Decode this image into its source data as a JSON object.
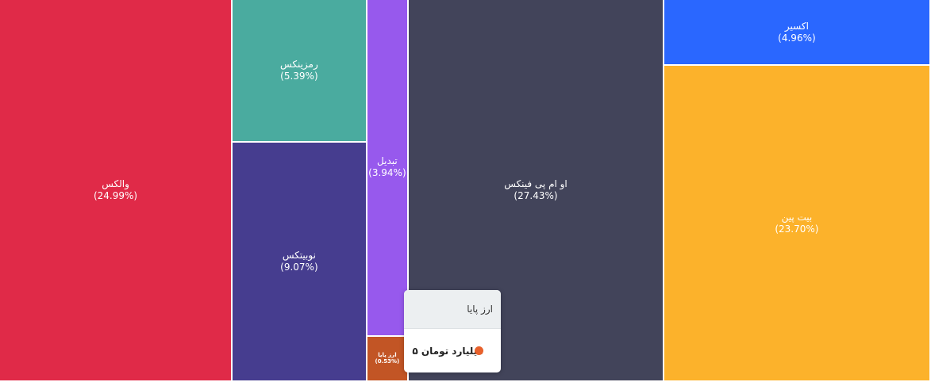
{
  "chart_data": {
    "type": "treemap",
    "items": [
      {
        "name": "والکس",
        "percent": 24.99,
        "label": "(24.99%)",
        "color": "#e02a48"
      },
      {
        "name": "رمزینکس",
        "percent": 5.39,
        "label": "(5.39%)",
        "color": "#4aab9f"
      },
      {
        "name": "نوبیتکس",
        "percent": 9.07,
        "label": "(9.07%)",
        "color": "#463d8f"
      },
      {
        "name": "تبدیل",
        "percent": 3.94,
        "label": "(3.94%)",
        "color": "#9759ed"
      },
      {
        "name": "ارز پایا",
        "percent": 0.53,
        "label": "(0.53%)",
        "color": "#c25525"
      },
      {
        "name": "او ام پی فینکس",
        "percent": 27.43,
        "label": "(27.43%)",
        "color": "#42445a"
      },
      {
        "name": "اکسیر",
        "percent": 4.96,
        "label": "(4.96%)",
        "color": "#2a67ff"
      },
      {
        "name": "بیت پین",
        "percent": 23.7,
        "label": "(23.70%)",
        "color": "#fcb22b"
      }
    ]
  },
  "tooltip": {
    "title": "ارز پایا",
    "value": "۵ میلیارد تومان",
    "dot_color": "#e8612c"
  }
}
